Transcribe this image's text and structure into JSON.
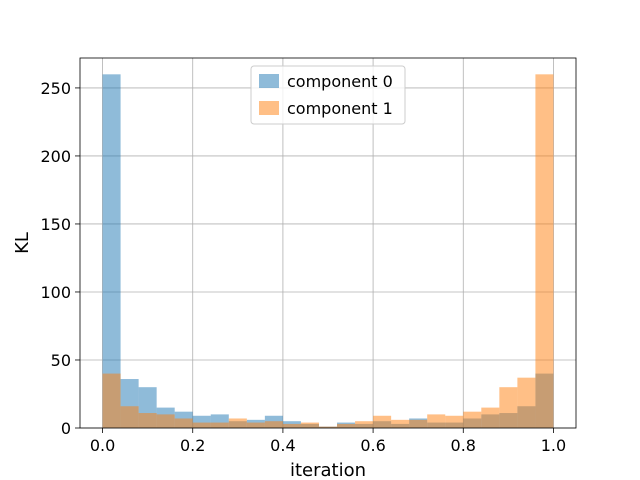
{
  "chart_data": {
    "type": "histogram",
    "title": "",
    "xlabel": "iteration",
    "ylabel": "KL",
    "xlim": [
      -0.05,
      1.05
    ],
    "ylim": [
      0,
      272
    ],
    "xticks": [
      "0.0",
      "0.2",
      "0.4",
      "0.6",
      "0.8",
      "1.0"
    ],
    "yticks": [
      "0",
      "50",
      "100",
      "150",
      "200",
      "250"
    ],
    "grid": true,
    "legend_position": "top-center",
    "bin_edges": [
      0.0,
      0.04,
      0.08,
      0.12,
      0.16,
      0.2,
      0.24,
      0.28,
      0.32,
      0.36,
      0.4,
      0.44,
      0.48,
      0.52,
      0.56,
      0.6,
      0.64,
      0.68,
      0.72,
      0.76,
      0.8,
      0.84,
      0.88,
      0.92,
      0.96,
      1.0
    ],
    "series": [
      {
        "name": "component 0",
        "color": "#1f77b4",
        "alpha": 0.5,
        "values": [
          260,
          36,
          30,
          15,
          12,
          9,
          10,
          5,
          6,
          9,
          5,
          3,
          1,
          4,
          3,
          5,
          3,
          7,
          4,
          4,
          7,
          10,
          11,
          16,
          40
        ]
      },
      {
        "name": "component 1",
        "color": "#ff7f0e",
        "alpha": 0.5,
        "values": [
          40,
          16,
          11,
          10,
          7,
          4,
          4,
          7,
          4,
          5,
          3,
          4,
          1,
          3,
          5,
          9,
          6,
          6,
          10,
          9,
          12,
          15,
          30,
          37,
          260
        ]
      }
    ]
  }
}
